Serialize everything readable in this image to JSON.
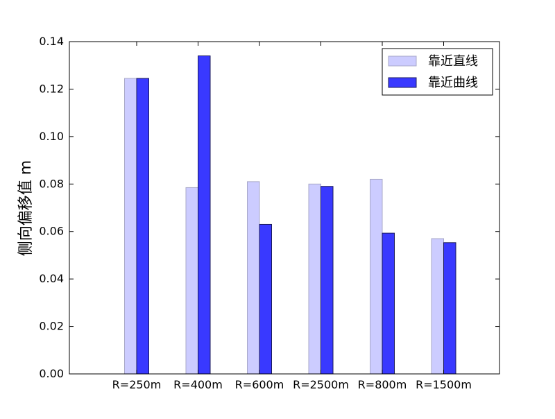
{
  "chart_data": {
    "type": "bar",
    "title": "",
    "xlabel": "",
    "ylabel": "侧向偏移值 m",
    "ylim": [
      0,
      0.14
    ],
    "yticks": [
      "0.00",
      "0.02",
      "0.04",
      "0.06",
      "0.08",
      "0.10",
      "0.12",
      "0.14"
    ],
    "grid": false,
    "legend_position": "top-right",
    "categories": [
      "R=250m",
      "R=400m",
      "R=600m",
      "R=2500m",
      "R=800m",
      "R=1500m"
    ],
    "series": [
      {
        "name": "靠近直线",
        "color": "#ccccff",
        "values": [
          0.1245,
          0.0785,
          0.081,
          0.08,
          0.082,
          0.057
        ]
      },
      {
        "name": "靠近曲线",
        "color": "#3939ff",
        "values": [
          0.1245,
          0.134,
          0.063,
          0.079,
          0.0593,
          0.0553
        ]
      }
    ]
  }
}
